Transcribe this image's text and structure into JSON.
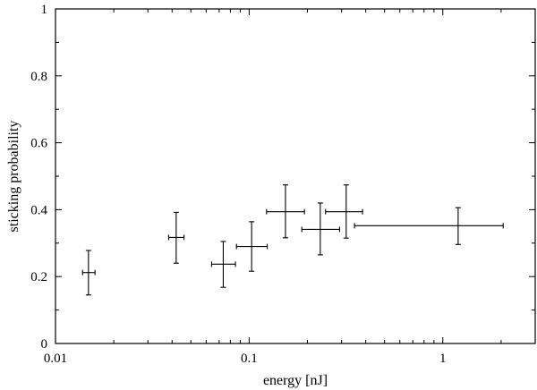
{
  "chart_data": {
    "type": "scatter",
    "xlabel": "energy [nJ]",
    "ylabel": "sticking probability",
    "x_scale": "log",
    "xlim": [
      0.01,
      3.0
    ],
    "ylim": [
      0,
      1
    ],
    "grid": false,
    "x_ticks": [
      {
        "value": 0.01,
        "label": "0.01"
      },
      {
        "value": 0.1,
        "label": "0.1"
      },
      {
        "value": 1,
        "label": "1"
      }
    ],
    "y_ticks": [
      {
        "value": 0,
        "label": "0"
      },
      {
        "value": 0.2,
        "label": "0.2"
      },
      {
        "value": 0.4,
        "label": "0.4"
      },
      {
        "value": 0.6,
        "label": "0.6"
      },
      {
        "value": 0.8,
        "label": "0.8"
      },
      {
        "value": 1,
        "label": "1"
      }
    ],
    "points": [
      {
        "x": 0.0148,
        "x_low": 0.0138,
        "x_high": 0.016,
        "y": 0.212,
        "y_low": 0.145,
        "y_high": 0.278
      },
      {
        "x": 0.042,
        "x_low": 0.0384,
        "x_high": 0.0461,
        "y": 0.317,
        "y_low": 0.24,
        "y_high": 0.392
      },
      {
        "x": 0.0735,
        "x_low": 0.064,
        "x_high": 0.085,
        "y": 0.237,
        "y_low": 0.168,
        "y_high": 0.305
      },
      {
        "x": 0.103,
        "x_low": 0.086,
        "x_high": 0.124,
        "y": 0.29,
        "y_low": 0.216,
        "y_high": 0.364
      },
      {
        "x": 0.154,
        "x_low": 0.123,
        "x_high": 0.193,
        "y": 0.394,
        "y_low": 0.316,
        "y_high": 0.474
      },
      {
        "x": 0.233,
        "x_low": 0.187,
        "x_high": 0.293,
        "y": 0.341,
        "y_low": 0.265,
        "y_high": 0.42
      },
      {
        "x": 0.317,
        "x_low": 0.248,
        "x_high": 0.385,
        "y": 0.394,
        "y_low": 0.315,
        "y_high": 0.474
      },
      {
        "x": 1.2,
        "x_low": 0.35,
        "x_high": 2.05,
        "y": 0.352,
        "y_low": 0.296,
        "y_high": 0.406
      }
    ]
  }
}
